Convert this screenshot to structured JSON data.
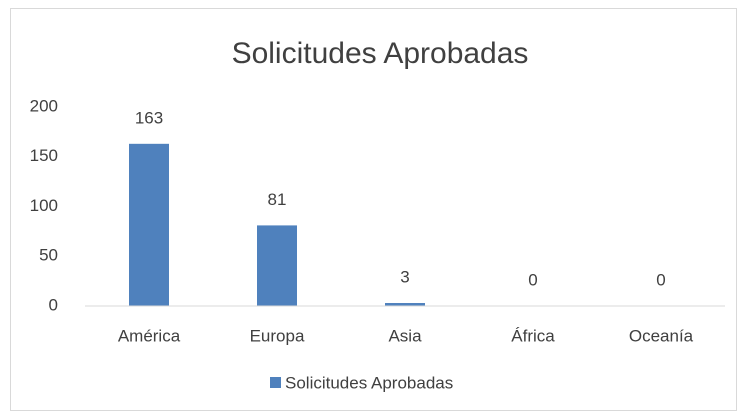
{
  "chart_data": {
    "type": "bar",
    "title": "Solicitudes Aprobadas",
    "categories": [
      "América",
      "Europa",
      "Asia",
      "África",
      "Oceanía"
    ],
    "series": [
      {
        "name": "Solicitudes Aprobadas",
        "color": "#4f81bd",
        "values": [
          163,
          81,
          3,
          0,
          0
        ]
      }
    ],
    "ylim": [
      0,
      200
    ],
    "yticks": [
      0,
      50,
      100,
      150,
      200
    ],
    "grid": false,
    "legend": "bottom"
  }
}
